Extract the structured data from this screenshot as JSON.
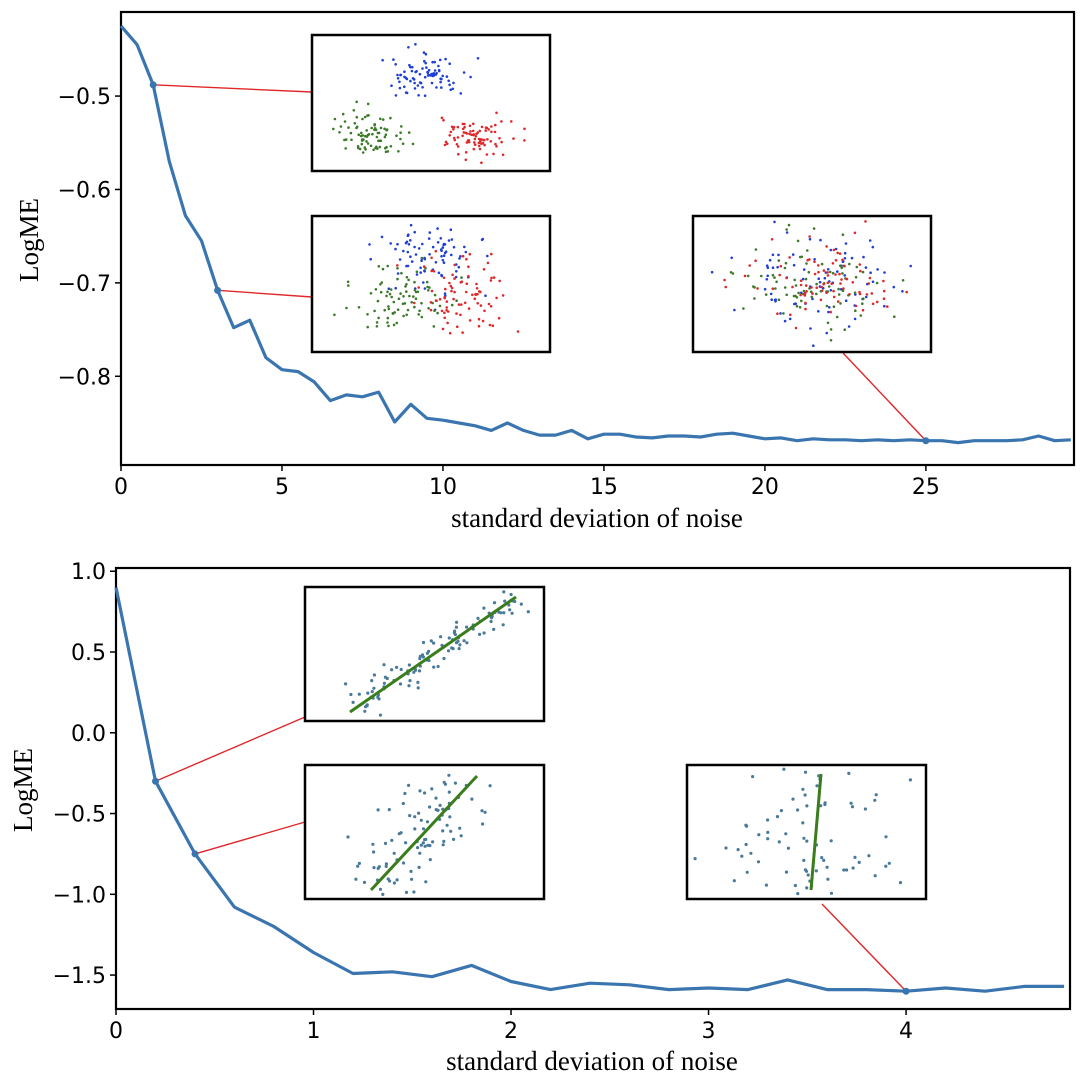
{
  "colors": {
    "curve": "#3a75b0",
    "leader": "#e0282a",
    "cluster_blue": "#1f3fd6",
    "cluster_green": "#3b7a28",
    "cluster_red": "#e0282a",
    "regression_point": "#4a7a9a",
    "fit_line": "#3a7d1c"
  },
  "chart_data": [
    {
      "type": "line",
      "xlabel": "standard deviation of noise",
      "ylabel": "LogME",
      "xlim": [
        0,
        29.6
      ],
      "ylim": [
        -0.895,
        -0.41
      ],
      "xticks": [
        0,
        5,
        10,
        15,
        20,
        25
      ],
      "xtick_labels": [
        "0",
        "5",
        "10",
        "15",
        "20",
        "25"
      ],
      "yticks": [
        -0.5,
        -0.6,
        -0.7,
        -0.8
      ],
      "ytick_labels": [
        "−0.5",
        "−0.6",
        "−0.7",
        "−0.8"
      ],
      "series": [
        {
          "name": "LogME",
          "x": [
            0,
            0.5,
            1,
            1.5,
            2,
            2.5,
            3,
            3.5,
            4,
            4.5,
            5,
            5.5,
            6,
            6.5,
            7,
            7.5,
            8,
            8.5,
            9,
            9.5,
            10,
            10.5,
            11,
            11.5,
            12,
            12.5,
            13,
            13.5,
            14,
            14.5,
            15,
            15.5,
            16,
            16.5,
            17,
            17.5,
            18,
            18.5,
            19,
            19.5,
            20,
            20.5,
            21,
            21.5,
            22,
            22.5,
            23,
            23.5,
            24,
            24.5,
            25,
            25.5,
            26,
            26.5,
            27,
            27.5,
            28,
            28.5,
            29,
            29.5
          ],
          "values": [
            -0.425,
            -0.445,
            -0.488,
            -0.57,
            -0.628,
            -0.655,
            -0.708,
            -0.748,
            -0.74,
            -0.78,
            -0.793,
            -0.795,
            -0.806,
            -0.826,
            -0.82,
            -0.822,
            -0.817,
            -0.849,
            -0.83,
            -0.845,
            -0.847,
            -0.85,
            -0.853,
            -0.858,
            -0.85,
            -0.858,
            -0.863,
            -0.863,
            -0.858,
            -0.867,
            -0.862,
            -0.862,
            -0.865,
            -0.866,
            -0.864,
            -0.864,
            -0.865,
            -0.862,
            -0.861,
            -0.864,
            -0.867,
            -0.866,
            -0.869,
            -0.867,
            -0.868,
            -0.868,
            -0.869,
            -0.868,
            -0.869,
            -0.868,
            -0.869,
            -0.869,
            -0.871,
            -0.869,
            -0.869,
            -0.869,
            -0.868,
            -0.864,
            -0.869,
            -0.868
          ]
        }
      ],
      "highlighted_points": [
        {
          "x": 1,
          "y": -0.488,
          "inset": "clusters_low_noise"
        },
        {
          "x": 3,
          "y": -0.708,
          "inset": "clusters_medium_noise"
        },
        {
          "x": 25,
          "y": -0.869,
          "inset": "clusters_high_noise"
        }
      ],
      "insets": [
        {
          "id": "clusters_low_noise",
          "type": "scatter",
          "groups": [
            "blue",
            "green",
            "red"
          ],
          "overlap": "separated"
        },
        {
          "id": "clusters_medium_noise",
          "type": "scatter",
          "groups": [
            "blue",
            "green",
            "red"
          ],
          "overlap": "partial"
        },
        {
          "id": "clusters_high_noise",
          "type": "scatter",
          "groups": [
            "blue",
            "green",
            "red"
          ],
          "overlap": "mixed"
        }
      ]
    },
    {
      "type": "line",
      "xlabel": "standard deviation of noise",
      "ylabel": "LogME",
      "xlim": [
        0,
        4.83
      ],
      "ylim": [
        -1.71,
        1.02
      ],
      "xticks": [
        0,
        1,
        2,
        3,
        4
      ],
      "xtick_labels": [
        "0",
        "1",
        "2",
        "3",
        "4"
      ],
      "yticks": [
        1.0,
        0.5,
        0.0,
        -0.5,
        -1.0,
        -1.5
      ],
      "ytick_labels": [
        "1.0",
        "0.5",
        "0.0",
        "−0.5",
        "−1.0",
        "−1.5"
      ],
      "series": [
        {
          "name": "LogME",
          "x": [
            0,
            0.2,
            0.4,
            0.6,
            0.8,
            1.0,
            1.2,
            1.4,
            1.6,
            1.8,
            2.0,
            2.2,
            2.4,
            2.6,
            2.8,
            3.0,
            3.2,
            3.4,
            3.6,
            3.8,
            4.0,
            4.2,
            4.4,
            4.6,
            4.8
          ],
          "values": [
            0.9,
            -0.3,
            -0.75,
            -1.08,
            -1.2,
            -1.36,
            -1.49,
            -1.48,
            -1.51,
            -1.44,
            -1.54,
            -1.59,
            -1.55,
            -1.56,
            -1.59,
            -1.58,
            -1.59,
            -1.53,
            -1.59,
            -1.59,
            -1.6,
            -1.58,
            -1.6,
            -1.57,
            -1.57
          ]
        }
      ],
      "highlighted_points": [
        {
          "x": 0.2,
          "y": -0.3,
          "inset": "regression_low_noise"
        },
        {
          "x": 0.4,
          "y": -0.75,
          "inset": "regression_medium_noise"
        },
        {
          "x": 4.0,
          "y": -1.6,
          "inset": "regression_high_noise"
        }
      ],
      "insets": [
        {
          "id": "regression_low_noise",
          "type": "scatter_with_fit",
          "spread": "tight"
        },
        {
          "id": "regression_medium_noise",
          "type": "scatter_with_fit",
          "spread": "wide"
        },
        {
          "id": "regression_high_noise",
          "type": "scatter_with_fit",
          "spread": "random"
        }
      ]
    }
  ]
}
